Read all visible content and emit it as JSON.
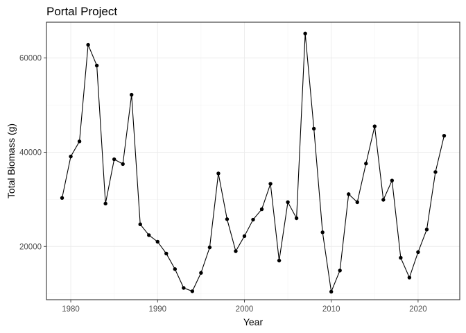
{
  "chart_data": {
    "type": "line",
    "title": "Portal Project",
    "xlabel": "Year",
    "ylabel": "Total Biomass (g)",
    "xlim": [
      1977.2,
      2024.8
    ],
    "ylim": [
      8700,
      67600
    ],
    "x_ticks": [
      1980,
      1990,
      2000,
      2010,
      2020
    ],
    "y_ticks": [
      20000,
      40000,
      60000
    ],
    "x_tick_labels": [
      "1980",
      "1990",
      "2000",
      "2010",
      "2020"
    ],
    "y_tick_labels": [
      "20000",
      "40000",
      "60000"
    ],
    "grid": true,
    "legend": "none",
    "line_color": "#000000",
    "point_color": "#000000",
    "series": [
      {
        "x": [
          1979,
          1980,
          1981,
          1982,
          1983,
          1984,
          1985,
          1986,
          1987,
          1988,
          1989,
          1990,
          1991,
          1992,
          1993,
          1994,
          1995,
          1996,
          1997,
          1998,
          1999,
          2000,
          2001,
          2002,
          2003,
          2004,
          2005,
          2006,
          2007,
          2008,
          2009,
          2010,
          2011,
          2012,
          2013,
          2014,
          2015,
          2016,
          2017,
          2018,
          2019,
          2020,
          2021,
          2022,
          2023
        ],
        "y": [
          30300,
          39100,
          42300,
          62800,
          58400,
          29100,
          38500,
          37500,
          52200,
          24700,
          22400,
          21000,
          18500,
          15200,
          11200,
          10500,
          14400,
          19800,
          35500,
          25800,
          19000,
          22200,
          25700,
          27900,
          33300,
          17000,
          29400,
          26000,
          65200,
          45000,
          23000,
          10400,
          14900,
          31100,
          29400,
          37600,
          45500,
          29900,
          34000,
          17600,
          13400,
          18800,
          23600,
          35800,
          43500
        ]
      }
    ]
  }
}
